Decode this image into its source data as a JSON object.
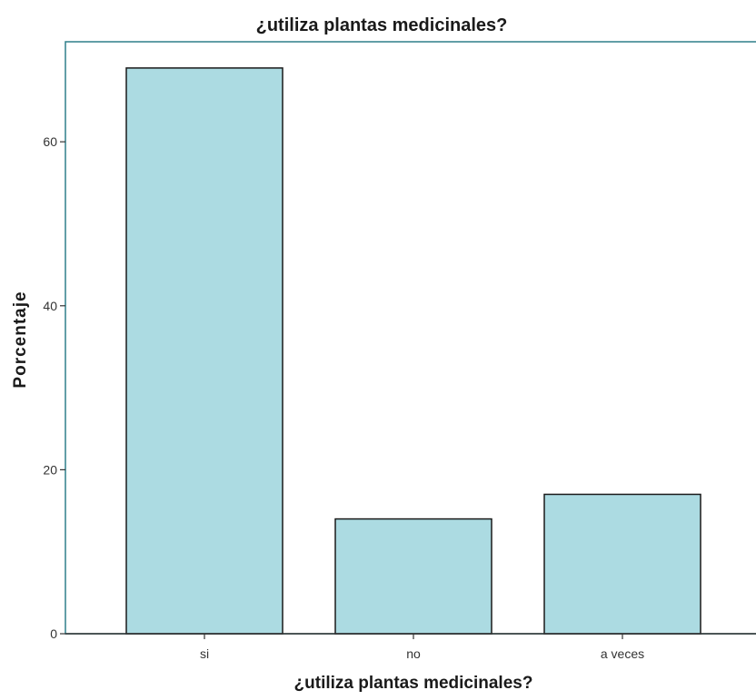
{
  "chart_data": {
    "type": "bar",
    "title": "¿utiliza plantas medicinales?",
    "xlabel": "¿utiliza plantas medicinales?",
    "ylabel": "Porcentaje",
    "categories": [
      "si",
      "no",
      "a veces"
    ],
    "values": [
      69,
      14,
      17
    ],
    "ylim": [
      0,
      72.2
    ],
    "yticks": [
      0,
      20,
      40,
      60
    ],
    "grid": false,
    "legend": "none",
    "colors": {
      "bar_fill": "#acdbe2",
      "bar_stroke": "#1a1a1a",
      "frame": "#2f7f8a",
      "axis": "#333333"
    }
  }
}
